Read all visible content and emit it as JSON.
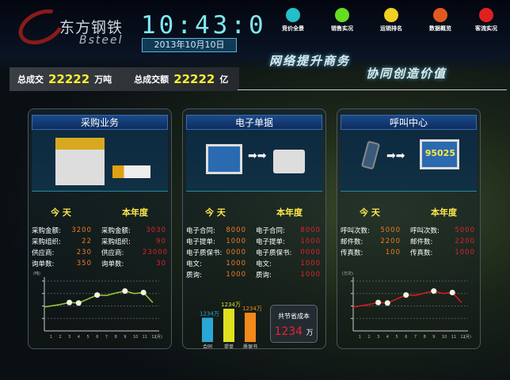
{
  "header": {
    "brand_cn": "东方钢铁",
    "brand_en": "Bsteel",
    "time": "10:43:0",
    "date": "2013年10月10日",
    "nav": [
      {
        "label": "竞价全景",
        "icon": "target-icon",
        "color": "#22c0c8"
      },
      {
        "label": "销售实况",
        "icon": "pie-icon",
        "color": "#66dd22"
      },
      {
        "label": "运销排名",
        "icon": "bar-rank-icon",
        "color": "#f0d020"
      },
      {
        "label": "数据概览",
        "icon": "list-icon",
        "color": "#e05a20"
      },
      {
        "label": "客流实况",
        "icon": "people-icon",
        "color": "#e02020"
      }
    ],
    "slogan1": "网络提升商务",
    "slogan2": "协同创造价值"
  },
  "totals": {
    "volume_label": "总成交",
    "volume": "22222",
    "volume_unit": "万吨",
    "amount_label": "总成交额",
    "amount": "22222",
    "amount_unit": "亿"
  },
  "panels": [
    {
      "title": "采购业务",
      "today": "今 天",
      "year": "本年度",
      "rows": [
        [
          "采购金额:",
          "3200",
          "采购金额:",
          "3030"
        ],
        [
          "采购组织:",
          "22",
          "采购组织:",
          "90"
        ],
        [
          "供应商:",
          "230",
          "供应商:",
          "23000"
        ],
        [
          "询单数:",
          "350",
          "询单数:",
          "30"
        ]
      ],
      "chart": {
        "type": "line",
        "color": "#9acd32",
        "yunit": "(吨)",
        "xunit": "(月)",
        "x": [
          1,
          2,
          3,
          4,
          5,
          6,
          7,
          8,
          9,
          10,
          11,
          12
        ],
        "y": [
          50,
          53,
          57,
          56,
          64,
          72,
          71,
          76,
          80,
          75,
          77,
          57
        ],
        "markers": [
          3,
          4,
          6,
          9,
          11
        ],
        "ylim": [
          0,
          100
        ]
      }
    },
    {
      "title": "电子单据",
      "today": "今 天",
      "year": "本年度",
      "rows": [
        [
          "电子合同:",
          "8000",
          "电子合同:",
          "8000"
        ],
        [
          "电子提单:",
          "1000",
          "电子提单:",
          "1000"
        ],
        [
          "电子质保书:",
          "0000",
          "电子质保书:",
          "0000"
        ],
        [
          "电文:",
          "1000",
          "电文:",
          "1000"
        ],
        [
          "质询:",
          "1000",
          "质询:",
          "1000"
        ]
      ],
      "bars": [
        {
          "label": "合同",
          "value_label": "1234万",
          "color": "#29a8d8",
          "level": 0.73
        },
        {
          "label": "提单",
          "value_label": "1234万",
          "color": "#e0e020",
          "level": 1
        },
        {
          "label": "质保书",
          "value_label": "1234万",
          "color": "#f08a1a",
          "level": 0.88
        }
      ],
      "saving": {
        "label": "共节省成本",
        "value": "1234",
        "unit": "万"
      }
    },
    {
      "title": "呼叫中心",
      "today": "今 天",
      "year": "本年度",
      "rows": [
        [
          "呼叫次数:",
          "5000",
          "呼叫次数:",
          "5000"
        ],
        [
          "邮件数:",
          "2200",
          "邮件数:",
          "2200"
        ],
        [
          "传真数:",
          "100",
          "传真数:",
          "1000"
        ]
      ],
      "phone": "95025",
      "chart": {
        "type": "line",
        "color": "#dd1a1a",
        "yunit": "(万次)",
        "xunit": "(月)",
        "x": [
          1,
          2,
          3,
          4,
          5,
          6,
          7,
          8,
          9,
          10,
          11,
          12
        ],
        "y": [
          50,
          53,
          57,
          56,
          64,
          72,
          71,
          76,
          80,
          75,
          77,
          57
        ],
        "markers": [
          3,
          4,
          6,
          9,
          11
        ],
        "ylim": [
          0,
          100
        ]
      }
    }
  ]
}
